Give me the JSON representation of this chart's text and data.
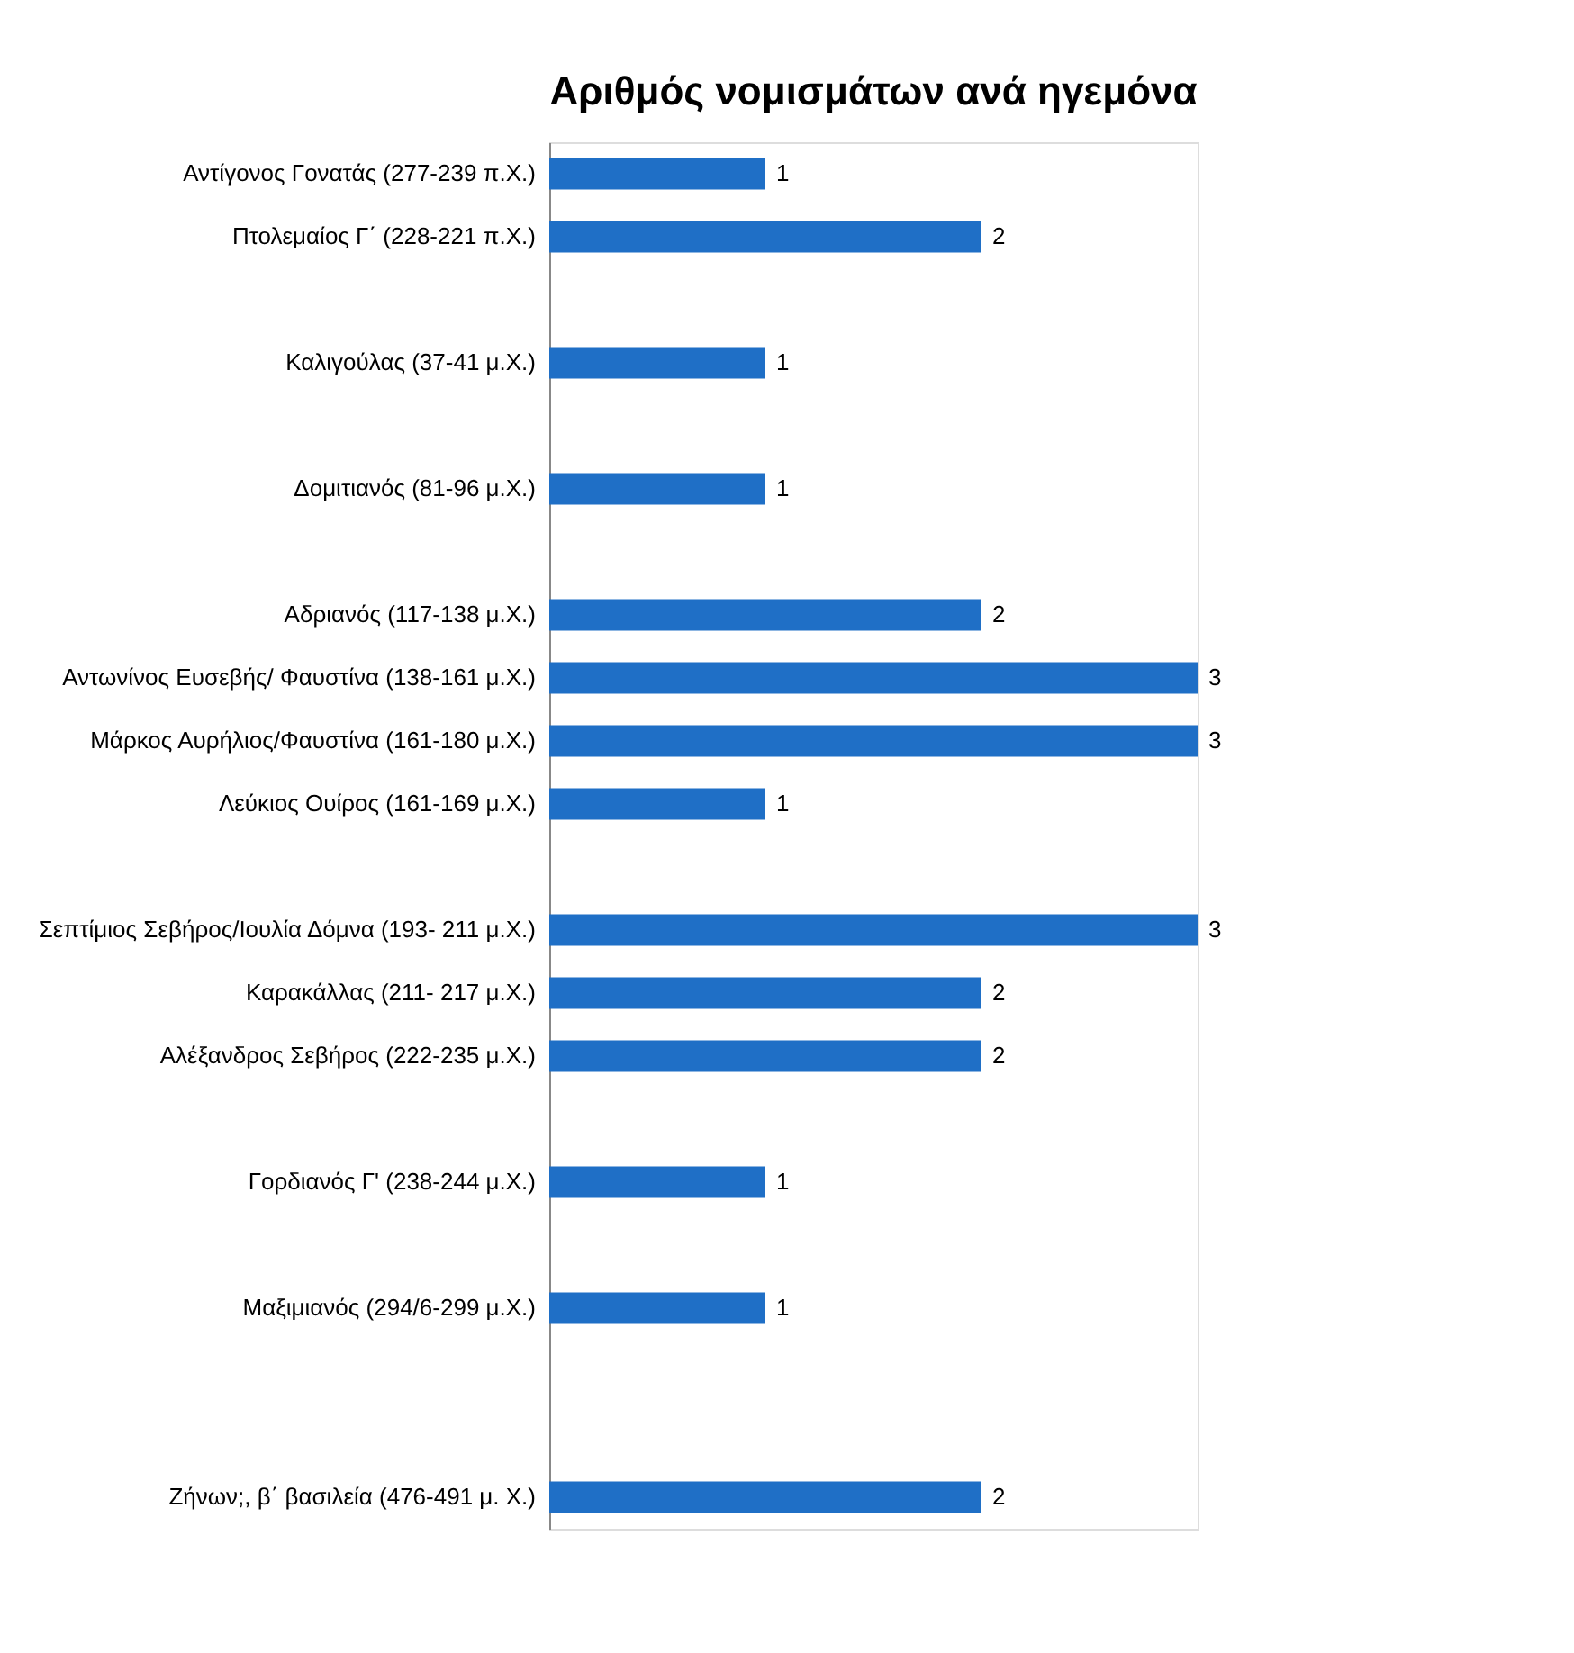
{
  "chart_data": {
    "type": "bar",
    "orientation": "horizontal",
    "title": "Αριθμός νομισμάτων ανά ηγεμόνα",
    "categories": [
      "Αντίγονος Γονατάς (277-239 π.Χ.)",
      "Πτολεμαίος Γ΄ (228-221 π.Χ.)",
      null,
      "Καλιγούλας (37-41 μ.Χ.)",
      null,
      "Δομιτιανός (81-96 μ.Χ.)",
      null,
      "Αδριανός (117-138 μ.Χ.)",
      "Αντωνίνος Ευσεβής/ Φαυστίνα (138-161 μ.Χ.)",
      "Μάρκος Αυρήλιος/Φαυστίνα  (161-180 μ.Χ.)",
      "Λεύκιος Ουίρος (161-169 μ.Χ.)",
      null,
      "Σεπτίμιος Σεβήρος/Ιουλία Δόμνα (193- 211 μ.Χ.)",
      "Καρακάλλας (211- 217 μ.Χ.)",
      "Αλέξανδρος Σεβήρος (222-235 μ.Χ.)",
      null,
      "Γορδιανός Γ' (238-244 μ.Χ.)",
      null,
      "Μαξιμιανός (294/6-299 μ.Χ.)",
      null,
      null,
      "Ζήνων;, β΄ βασιλεία (476-491 μ. Χ.)"
    ],
    "values": [
      1,
      2,
      null,
      1,
      null,
      1,
      null,
      2,
      3,
      3,
      1,
      null,
      3,
      2,
      2,
      null,
      1,
      null,
      1,
      null,
      null,
      2
    ],
    "color": "#1f6fc6",
    "data_labels": true
  }
}
